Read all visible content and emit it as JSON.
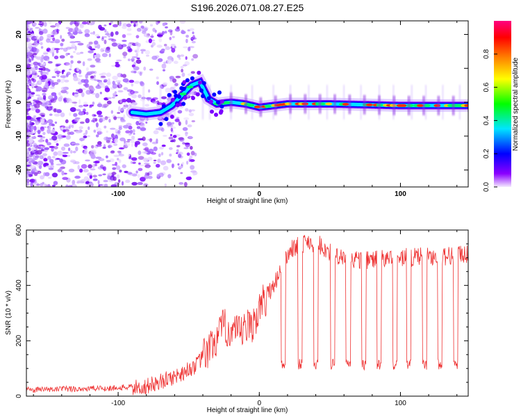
{
  "title": "S196.2026.071.08.27.E25",
  "chart_data": [
    {
      "type": "heatmap",
      "name": "spectrogram",
      "xlabel": "Height of straight line (km)",
      "ylabel": "Frequency (Hz)",
      "xlim": [
        -165,
        148
      ],
      "ylim": [
        -25,
        24
      ],
      "x_ticks": [
        "-100",
        "0",
        "100"
      ],
      "x_tick_values": [
        -100,
        0,
        100
      ],
      "y_ticks": [
        "20",
        "10",
        "0",
        "-10",
        "-20"
      ],
      "y_tick_values": [
        20,
        10,
        0,
        -10,
        -20
      ],
      "colorbar": {
        "label": "Normalized spectral amplitude",
        "range": [
          0,
          1
        ],
        "ticks": [
          "0.0",
          "0.2",
          "0.4",
          "0.6",
          "0.8"
        ],
        "tick_values": [
          0.0,
          0.2,
          0.4,
          0.6,
          0.8
        ],
        "colors": [
          "#f4eaff",
          "#8b00ff",
          "#0000ff",
          "#00e5ff",
          "#00ff00",
          "#ffff00",
          "#ff8000",
          "#ff0000",
          "#ff0080"
        ]
      },
      "signal_track": {
        "x": [
          -90,
          -80,
          -70,
          -62,
          -55,
          -48,
          -42,
          -36,
          -30,
          -20,
          -10,
          0,
          20,
          50,
          100,
          148
        ],
        "freq": [
          -3,
          -3.5,
          -3,
          -1,
          2,
          5,
          6,
          1,
          -0.5,
          0,
          -0.5,
          -1.5,
          -0.5,
          -0.5,
          -1,
          -1
        ]
      }
    },
    {
      "type": "line",
      "name": "snr",
      "xlabel": "Height of straight line (km)",
      "ylabel": "SNR (10 * v/v)",
      "xlim": [
        -165,
        148
      ],
      "ylim": [
        0,
        600
      ],
      "x_ticks": [
        "-100",
        "0",
        "100"
      ],
      "x_tick_values": [
        -100,
        0,
        100
      ],
      "y_ticks": [
        "0",
        "200",
        "400",
        "600"
      ],
      "y_tick_values": [
        0,
        200,
        400,
        600
      ],
      "color": "#ee3030",
      "envelope": {
        "x": [
          -165,
          -100,
          -80,
          -60,
          -45,
          -35,
          -25,
          -15,
          -5,
          5,
          12,
          18,
          25,
          35,
          45,
          55,
          75,
          100,
          148
        ],
        "y": [
          18,
          25,
          35,
          70,
          110,
          170,
          250,
          220,
          260,
          360,
          420,
          500,
          540,
          560,
          540,
          500,
          490,
          500,
          510
        ]
      },
      "dips": [
        17,
        29,
        40,
        52,
        63,
        74,
        85,
        96,
        106,
        117,
        128,
        139
      ],
      "dip_level": 115
    }
  ]
}
